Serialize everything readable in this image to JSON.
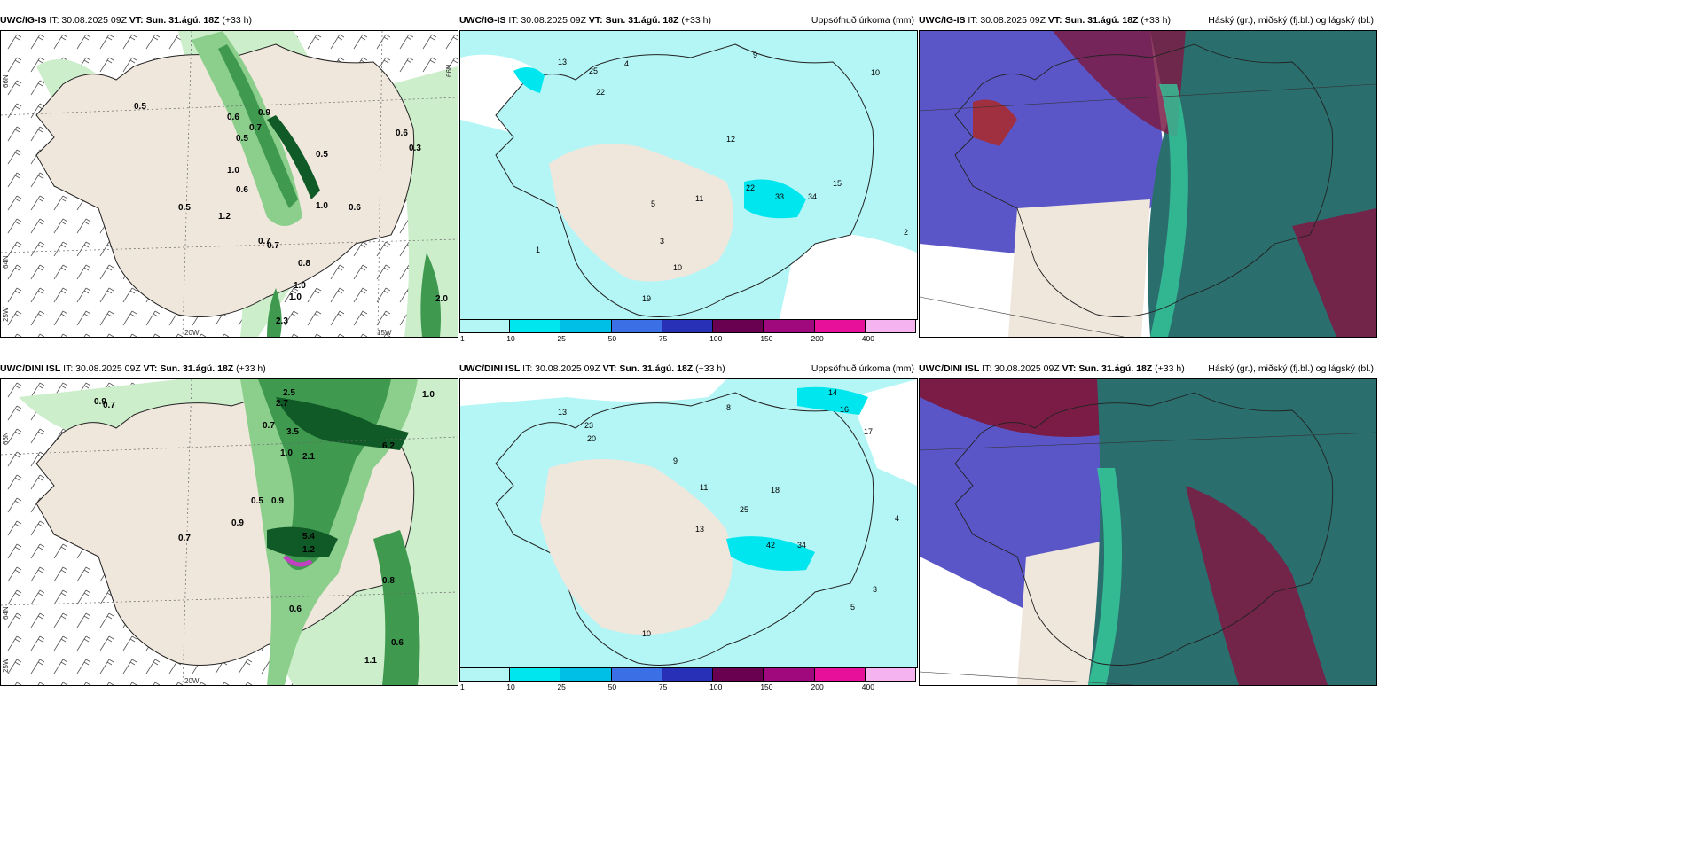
{
  "panels": [
    {
      "model": "UWC/IG-IS",
      "it": "IT: 30.08.2025 09Z",
      "vt": "VT: Sun. 31.ágú. 18Z",
      "lead": "(+33 h)",
      "right": ""
    },
    {
      "model": "UWC/IG-IS",
      "it": "IT: 30.08.2025 09Z",
      "vt": "VT: Sun. 31.ágú. 18Z",
      "lead": "(+33 h)",
      "right": "Uppsöfnuð úrkoma (mm)"
    },
    {
      "model": "UWC/IG-IS",
      "it": "IT: 30.08.2025 09Z",
      "vt": "VT: Sun. 31.ágú. 18Z",
      "lead": "(+33 h)",
      "right": "Háský (gr.), miðský (fj.bl.) og lágský (bl.)"
    },
    {
      "model": "UWC/DINI ISL",
      "it": "IT: 30.08.2025 09Z",
      "vt": "VT: Sun. 31.ágú. 18Z",
      "lead": "(+33 h)",
      "right": ""
    },
    {
      "model": "UWC/DINI ISL",
      "it": "IT: 30.08.2025 09Z",
      "vt": "VT: Sun. 31.ágú. 18Z",
      "lead": "(+33 h)",
      "right": "Uppsöfnuð úrkoma (mm)"
    },
    {
      "model": "UWC/DINI ISL",
      "it": "IT: 30.08.2025 09Z",
      "vt": "VT: Sun. 31.ágú. 18Z",
      "lead": "(+33 h)",
      "right": "Háský (gr.), miðský (fj.bl.) og lágský (bl.)"
    }
  ],
  "axis_labels": {
    "lat66": "66N",
    "lat64": "64N",
    "lat65": "65N",
    "lon20": "20W",
    "lon15": "15W",
    "lon25": "25W"
  },
  "colorbar": {
    "ticks": [
      "1",
      "10",
      "25",
      "50",
      "75",
      "100",
      "150",
      "200",
      "400"
    ],
    "colors": [
      "#b4f6f6",
      "#00e6ee",
      "#00bfe6",
      "#3a6fe6",
      "#2830b8",
      "#6a0050",
      "#a0087e",
      "#e6109a",
      "#f5b4f0"
    ]
  },
  "precip_top_values": [
    "0.5",
    "0.6",
    "0.5",
    "0.7",
    "0.9",
    "0.5",
    "1.0",
    "0.6",
    "1.2",
    "0.5",
    "0.6",
    "0.7",
    "1.0",
    "0.8",
    "0.3",
    "0.6",
    "1.0",
    "2.0",
    "1.0",
    "0.7",
    "2.3"
  ],
  "precip_bottom_values": [
    "0.9",
    "0.7",
    "3.5",
    "2.7",
    "2.5",
    "6.2",
    "0.7",
    "1.0",
    "2.1",
    "0.5",
    "0.9",
    "5.4",
    "1.2",
    "0.6",
    "0.9",
    "0.8",
    "0.7",
    "1.0",
    "0.6",
    "1.1"
  ],
  "accum_top_values": [
    "13",
    "25",
    "22",
    "9",
    "10",
    "12",
    "22",
    "33",
    "15",
    "2",
    "5",
    "11",
    "3",
    "1",
    "19",
    "34",
    "4",
    "10"
  ],
  "accum_bottom_values": [
    "13",
    "23",
    "20",
    "14",
    "16",
    "17",
    "25",
    "18",
    "42",
    "34",
    "13",
    "9",
    "11",
    "10",
    "8",
    "4",
    "5",
    "3"
  ],
  "colors": {
    "land": "#efe6dc",
    "sea": "#ffffff",
    "cyan": "#b4f6f6",
    "green1": "#cdeecb",
    "green2": "#8ccf8c",
    "green3": "#3f9a4f",
    "green4": "#0f5a26",
    "purple": "#5a56c8",
    "maroon": "#7a1c45",
    "teal": "#2a6e6e",
    "mint": "#35c89a"
  }
}
